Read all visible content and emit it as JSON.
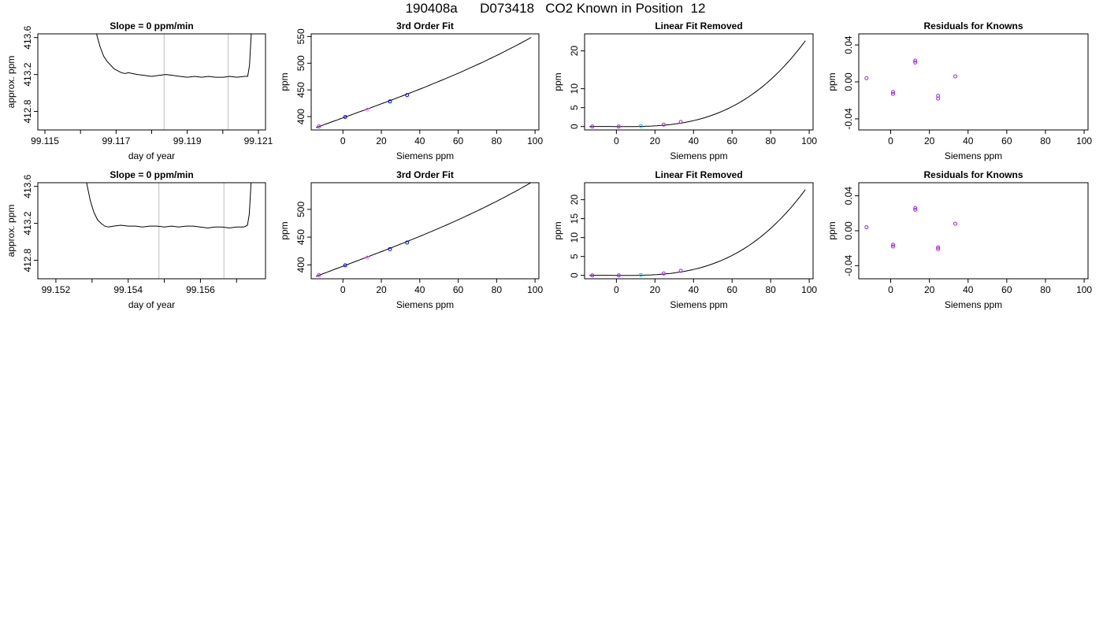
{
  "page": {
    "title": "190408a      D073418   CO2 Known in Position  12"
  },
  "colors": {
    "frame": "#000000",
    "trace": "#000000",
    "marker_line": "#c8c8c8",
    "point_blue": "#0000ff",
    "point_purple": "#a020f0",
    "point_cyan": "#00bfff",
    "point_violet": "#ee82ee"
  },
  "chart_data": [
    {
      "type": "line",
      "title": "Slope =  0  ppm/min",
      "xlabel": "day of year",
      "ylabel": "approx. ppm",
      "xlim": [
        99.1148,
        99.1212
      ],
      "ylim": [
        412.6,
        413.64
      ],
      "xticks": [
        99.115,
        99.116,
        99.117,
        99.118,
        99.119,
        99.12,
        99.121
      ],
      "xticklabels": [
        "99.115",
        "",
        "99.117",
        "",
        "99.119",
        "",
        "99.121"
      ],
      "yticks": [
        412.8,
        413.2,
        413.6
      ],
      "yticklabels": [
        "412.8",
        "413.2",
        "413.6"
      ],
      "vlines": [
        99.11835,
        99.12015
      ],
      "x": [
        99.11645,
        99.11655,
        99.11665,
        99.11675,
        99.11685,
        99.11695,
        99.11705,
        99.11715,
        99.11725,
        99.11735,
        99.11745,
        99.1176,
        99.1178,
        99.118,
        99.1182,
        99.1184,
        99.1186,
        99.1188,
        99.119,
        99.1192,
        99.1194,
        99.1196,
        99.1198,
        99.12,
        99.1202,
        99.1204,
        99.1206,
        99.1207,
        99.12075,
        99.1208
      ],
      "y": [
        413.64,
        413.5,
        413.4,
        413.34,
        413.3,
        413.26,
        413.24,
        413.22,
        413.21,
        413.22,
        413.21,
        413.2,
        413.19,
        413.18,
        413.19,
        413.2,
        413.19,
        413.18,
        413.17,
        413.18,
        413.17,
        413.18,
        413.17,
        413.17,
        413.18,
        413.17,
        413.18,
        413.18,
        413.3,
        413.64
      ],
      "grid": false
    },
    {
      "type": "scatter",
      "title": "3rd Order Fit",
      "xlabel": "Siemens ppm",
      "ylabel": "ppm",
      "xlim": [
        -16.5,
        102
      ],
      "ylim": [
        375,
        555
      ],
      "xticks": [
        0,
        20,
        40,
        60,
        80,
        100
      ],
      "xticklabels": [
        "0",
        "20",
        "40",
        "60",
        "80",
        "100"
      ],
      "yticks": [
        400,
        450,
        500,
        550
      ],
      "yticklabels": [
        "400",
        "450",
        "500",
        "550"
      ],
      "points": [
        {
          "x": -12.5,
          "y": 381.5,
          "color": "purple"
        },
        {
          "x": 1.2,
          "y": 399.3,
          "color": "blue"
        },
        {
          "x": 12.7,
          "y": 413.2,
          "color": "violet"
        },
        {
          "x": 24.5,
          "y": 428.4,
          "color": "blue"
        },
        {
          "x": 33.4,
          "y": 440.3,
          "color": "blue"
        }
      ],
      "fit": {
        "x": [
          -14,
          98
        ],
        "c0": 397.6,
        "c1": 1.3035,
        "c2": 0.000128,
        "c3": 2.31e-05
      },
      "grid": false
    },
    {
      "type": "scatter",
      "title": "Linear Fit Removed",
      "xlabel": "Siemens ppm",
      "ylabel": "ppm",
      "xlim": [
        -16.5,
        102
      ],
      "ylim": [
        -0.9,
        24.5
      ],
      "xticks": [
        0,
        20,
        40,
        60,
        80,
        100
      ],
      "xticklabels": [
        "0",
        "20",
        "40",
        "60",
        "80",
        "100"
      ],
      "yticks": [
        0,
        5,
        10,
        20
      ],
      "yticklabels": [
        "0",
        "5",
        "10",
        "20"
      ],
      "points": [
        {
          "x": -12.5,
          "y": 0.0,
          "color": "purple"
        },
        {
          "x": 1.2,
          "y": 0.0,
          "color": "purple"
        },
        {
          "x": 12.7,
          "y": 0.1,
          "color": "cyan"
        },
        {
          "x": 24.5,
          "y": 0.5,
          "color": "purple"
        },
        {
          "x": 33.4,
          "y": 1.2,
          "color": "purple"
        }
      ],
      "fit": {
        "x": [
          -14,
          98
        ],
        "c0": 0.0,
        "c1": -0.003,
        "c2": 0.000128,
        "c3": 2.31e-05
      },
      "grid": false
    },
    {
      "type": "scatter",
      "title": "Residuals for Knowns",
      "xlabel": "Siemens ppm",
      "ylabel": "ppm",
      "xlim": [
        -16.5,
        102
      ],
      "ylim": [
        -0.052,
        0.052
      ],
      "xticks": [
        0,
        20,
        40,
        60,
        80,
        100
      ],
      "xticklabels": [
        "0",
        "20",
        "40",
        "60",
        "80",
        "100"
      ],
      "yticks": [
        -0.04,
        0.0,
        0.04
      ],
      "yticklabels": [
        "-0.04",
        "0.00",
        "0.04"
      ],
      "points": [
        {
          "x": -12.5,
          "y": 0.004,
          "color": "purple"
        },
        {
          "x": 1.2,
          "y": -0.011,
          "color": "purple"
        },
        {
          "x": 1.2,
          "y": -0.013,
          "color": "purple"
        },
        {
          "x": 12.7,
          "y": 0.021,
          "color": "purple"
        },
        {
          "x": 12.7,
          "y": 0.023,
          "color": "purple"
        },
        {
          "x": 24.5,
          "y": -0.015,
          "color": "purple"
        },
        {
          "x": 24.5,
          "y": -0.018,
          "color": "purple"
        },
        {
          "x": 33.4,
          "y": 0.006,
          "color": "purple"
        }
      ],
      "grid": false
    },
    {
      "type": "line",
      "title": "Slope =  0  ppm/min",
      "xlabel": "day of year",
      "ylabel": "approx. ppm",
      "xlim": [
        99.1515,
        99.1578
      ],
      "ylim": [
        412.6,
        413.64
      ],
      "xticks": [
        99.152,
        99.153,
        99.154,
        99.155,
        99.156,
        99.157
      ],
      "xticklabels": [
        "99.152",
        "",
        "99.154",
        "",
        "99.156",
        ""
      ],
      "yticks": [
        412.8,
        413.2,
        413.6
      ],
      "yticklabels": [
        "412.8",
        "413.2",
        "413.6"
      ],
      "vlines": [
        99.15485,
        99.15665
      ],
      "x": [
        99.15285,
        99.15295,
        99.15305,
        99.15315,
        99.15325,
        99.15335,
        99.15345,
        99.1536,
        99.1538,
        99.154,
        99.1542,
        99.1544,
        99.1546,
        99.1548,
        99.155,
        99.1552,
        99.1554,
        99.1556,
        99.1558,
        99.156,
        99.1562,
        99.1564,
        99.1566,
        99.1568,
        99.157,
        99.1572,
        99.1573,
        99.15735,
        99.1574
      ],
      "y": [
        413.64,
        413.45,
        413.32,
        413.24,
        413.2,
        413.17,
        413.16,
        413.17,
        413.18,
        413.17,
        413.17,
        413.16,
        413.17,
        413.17,
        413.16,
        413.17,
        413.16,
        413.17,
        413.17,
        413.16,
        413.15,
        413.16,
        413.16,
        413.15,
        413.16,
        413.16,
        413.18,
        413.3,
        413.64
      ],
      "grid": false
    },
    {
      "type": "scatter",
      "title": "3rd Order Fit",
      "xlabel": "Siemens ppm",
      "ylabel": "ppm",
      "xlim": [
        -16.5,
        102
      ],
      "ylim": [
        375,
        548
      ],
      "xticks": [
        0,
        20,
        40,
        60,
        80,
        100
      ],
      "xticklabels": [
        "0",
        "20",
        "40",
        "60",
        "80",
        "100"
      ],
      "yticks": [
        400,
        450,
        500
      ],
      "yticklabels": [
        "400",
        "450",
        "500"
      ],
      "points": [
        {
          "x": -12.5,
          "y": 381.5,
          "color": "purple"
        },
        {
          "x": 1.2,
          "y": 399.3,
          "color": "blue"
        },
        {
          "x": 12.7,
          "y": 413.2,
          "color": "violet"
        },
        {
          "x": 24.5,
          "y": 428.4,
          "color": "blue"
        },
        {
          "x": 33.4,
          "y": 440.3,
          "color": "blue"
        }
      ],
      "fit": {
        "x": [
          -14,
          98
        ],
        "c0": 397.6,
        "c1": 1.3035,
        "c2": 0.000128,
        "c3": 2.31e-05
      },
      "grid": false
    },
    {
      "type": "scatter",
      "title": "Linear Fit Removed",
      "xlabel": "Siemens ppm",
      "ylabel": "ppm",
      "xlim": [
        -16.5,
        102
      ],
      "ylim": [
        -0.9,
        24.5
      ],
      "xticks": [
        0,
        20,
        40,
        60,
        80,
        100
      ],
      "xticklabels": [
        "0",
        "20",
        "40",
        "60",
        "80",
        "100"
      ],
      "yticks": [
        0,
        5,
        10,
        15,
        20
      ],
      "yticklabels": [
        "0",
        "5",
        "10",
        "15",
        "20"
      ],
      "points": [
        {
          "x": -12.5,
          "y": 0.0,
          "color": "purple"
        },
        {
          "x": 1.2,
          "y": 0.0,
          "color": "purple"
        },
        {
          "x": 12.7,
          "y": 0.1,
          "color": "cyan"
        },
        {
          "x": 24.5,
          "y": 0.5,
          "color": "purple"
        },
        {
          "x": 33.4,
          "y": 1.2,
          "color": "purple"
        }
      ],
      "fit": {
        "x": [
          -14,
          98
        ],
        "c0": 0.0,
        "c1": -0.003,
        "c2": 0.000128,
        "c3": 2.31e-05
      },
      "grid": false
    },
    {
      "type": "scatter",
      "title": "Residuals for Knowns",
      "xlabel": "Siemens ppm",
      "ylabel": "ppm",
      "xlim": [
        -16.5,
        102
      ],
      "ylim": [
        -0.055,
        0.055
      ],
      "xticks": [
        0,
        20,
        40,
        60,
        80,
        100
      ],
      "xticklabels": [
        "0",
        "20",
        "40",
        "60",
        "80",
        "100"
      ],
      "yticks": [
        -0.04,
        0.0,
        0.04
      ],
      "yticklabels": [
        "-0.04",
        "0.00",
        "0.04"
      ],
      "points": [
        {
          "x": -12.5,
          "y": 0.004,
          "color": "purple"
        },
        {
          "x": 1.2,
          "y": -0.016,
          "color": "purple"
        },
        {
          "x": 1.2,
          "y": -0.018,
          "color": "purple"
        },
        {
          "x": 12.7,
          "y": 0.024,
          "color": "purple"
        },
        {
          "x": 12.7,
          "y": 0.026,
          "color": "purple"
        },
        {
          "x": 24.5,
          "y": -0.019,
          "color": "purple"
        },
        {
          "x": 24.5,
          "y": -0.021,
          "color": "purple"
        },
        {
          "x": 33.4,
          "y": 0.008,
          "color": "purple"
        }
      ],
      "grid": false
    }
  ]
}
